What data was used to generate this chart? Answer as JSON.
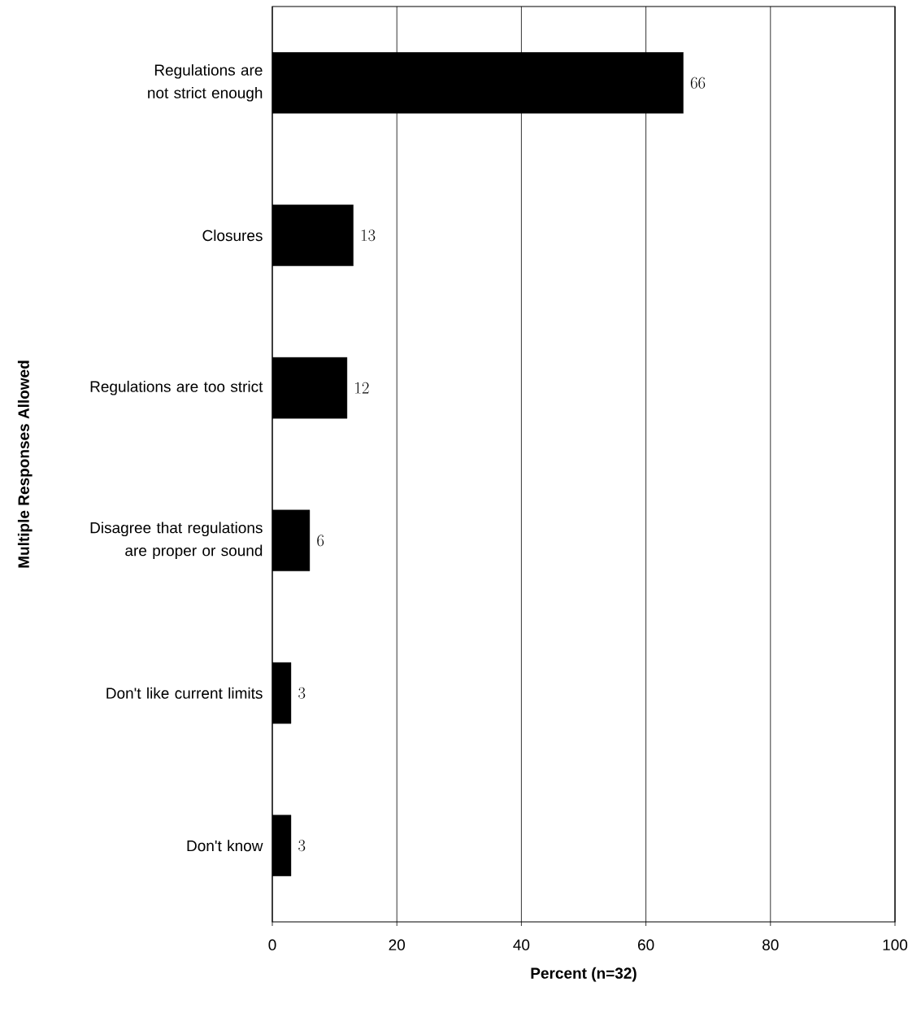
{
  "chart_data": {
    "type": "bar",
    "orientation": "horizontal",
    "xlabel": "Percent (n=32)",
    "ylabel": "Multiple Responses Allowed",
    "categories": [
      "Regulations are not strict enough",
      "Closures",
      "Regulations are too strict",
      "Disagree that regulations are proper or sound",
      "Don't like current limits",
      "Don't know"
    ],
    "values": [
      66,
      13,
      12,
      6,
      3,
      3
    ],
    "color": "#000000",
    "data_labels": true,
    "xlim": [
      0,
      100
    ],
    "xticks": [
      0,
      20,
      40,
      60,
      80,
      100
    ],
    "grid": "x"
  }
}
